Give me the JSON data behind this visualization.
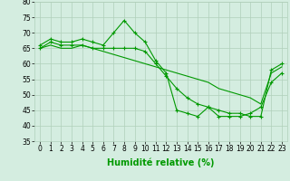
{
  "xlabel": "Humidité relative (%)",
  "xlim": [
    -0.5,
    23.5
  ],
  "ylim": [
    35,
    80
  ],
  "yticks": [
    35,
    40,
    45,
    50,
    55,
    60,
    65,
    70,
    75,
    80
  ],
  "xticks": [
    0,
    1,
    2,
    3,
    4,
    5,
    6,
    7,
    8,
    9,
    10,
    11,
    12,
    13,
    14,
    15,
    16,
    17,
    18,
    19,
    20,
    21,
    22,
    23
  ],
  "bg_color": "#d4ede0",
  "grid_color": "#b0cfba",
  "line_color": "#009900",
  "line1": [
    66,
    68,
    67,
    67,
    68,
    67,
    66,
    70,
    74,
    70,
    67,
    61,
    57,
    45,
    44,
    43,
    46,
    43,
    43,
    43,
    44,
    46,
    54,
    57
  ],
  "line2": [
    65,
    67,
    66,
    66,
    66,
    65,
    65,
    65,
    65,
    65,
    64,
    60,
    56,
    52,
    49,
    47,
    46,
    45,
    44,
    44,
    43,
    43,
    58,
    60
  ],
  "line3": [
    65,
    66,
    65,
    65,
    66,
    65,
    64,
    63,
    62,
    61,
    60,
    59,
    58,
    57,
    56,
    55,
    54,
    52,
    51,
    50,
    49,
    47,
    57,
    59
  ],
  "tick_fontsize": 5.5,
  "xlabel_fontsize": 7
}
